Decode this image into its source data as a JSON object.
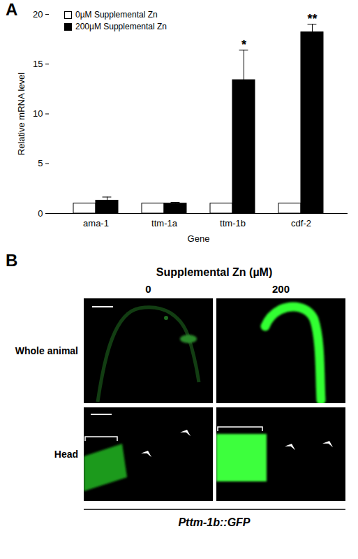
{
  "chart_data": {
    "type": "bar",
    "panel": "A",
    "categories": [
      "ama-1",
      "ttm-1a",
      "ttm-1b",
      "cdf-2"
    ],
    "series": [
      {
        "name": "0µM Supplemental Zn",
        "color": "#ffffff",
        "values": [
          1,
          1,
          1,
          1
        ]
      },
      {
        "name": "200µM Supplemental Zn",
        "color": "#000000",
        "values": [
          1.3,
          1.0,
          13.4,
          18.2
        ],
        "errors": [
          0.35,
          0.12,
          3.0,
          0.8
        ]
      }
    ],
    "ylim": [
      0,
      20
    ],
    "yticks": [
      0,
      5,
      10,
      15,
      20
    ],
    "y_label": "Relative mRNA level",
    "x_label": "Gene",
    "legend": "top-left",
    "annotations": [
      {
        "category": "ttm-1b",
        "text": "*"
      },
      {
        "category": "cdf-2",
        "text": "**"
      }
    ]
  },
  "panel_b": {
    "panel": "B",
    "title": "Supplemental Zn (µM)",
    "columns": [
      "0",
      "200"
    ],
    "rows": [
      "Whole animal",
      "Head"
    ],
    "caption": "Pttm-1b::GFP"
  }
}
